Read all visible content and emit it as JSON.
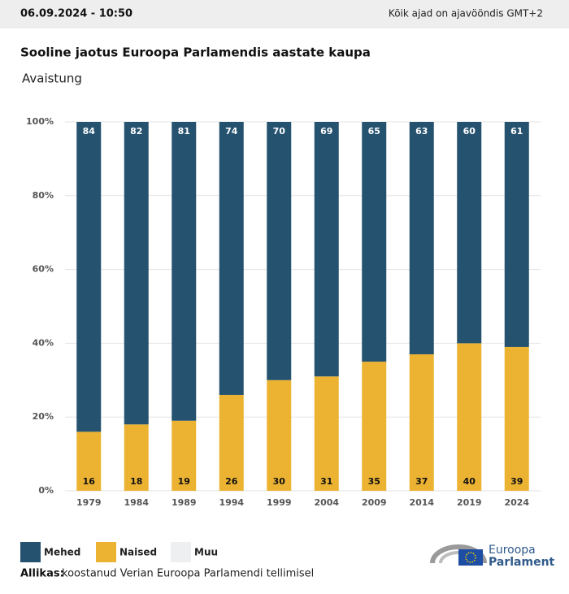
{
  "header": {
    "date": "06.09.2024 - 10:50",
    "timezone": "Kõik ajad on ajavööndis GMT+2"
  },
  "chart_data": {
    "type": "stacked_bar",
    "title": "Sooline jaotus Euroopa Parlamendis aastate kaupa",
    "subtitle": "Avaistung",
    "categories": [
      "1979",
      "1984",
      "1989",
      "1994",
      "1999",
      "2004",
      "2009",
      "2014",
      "2019",
      "2024"
    ],
    "series": [
      {
        "name": "Mehed",
        "color": "#25526f",
        "values": [
          84,
          82,
          81,
          74,
          70,
          69,
          65,
          63,
          60,
          61
        ]
      },
      {
        "name": "Naised",
        "color": "#ecb332",
        "values": [
          16,
          18,
          19,
          26,
          30,
          31,
          35,
          37,
          40,
          39
        ]
      },
      {
        "name": "Muu",
        "color": "#eeeff1",
        "values": [
          0,
          0,
          0,
          0,
          0,
          0,
          0,
          0,
          0,
          0
        ]
      }
    ],
    "ylim": [
      0,
      100
    ],
    "yticks": [
      {
        "value": 0,
        "label": "0%"
      },
      {
        "value": 20,
        "label": "20%"
      },
      {
        "value": 40,
        "label": "40%"
      },
      {
        "value": 60,
        "label": "60%"
      },
      {
        "value": 80,
        "label": "80%"
      },
      {
        "value": 100,
        "label": "100%"
      }
    ],
    "grid": true
  },
  "footer": {
    "source_label": "Allikas:",
    "source": "koostanud Verian Euroopa Parlamendi tellimisel"
  },
  "logo": {
    "line1": "Euroopa",
    "line2": "Parlament"
  }
}
